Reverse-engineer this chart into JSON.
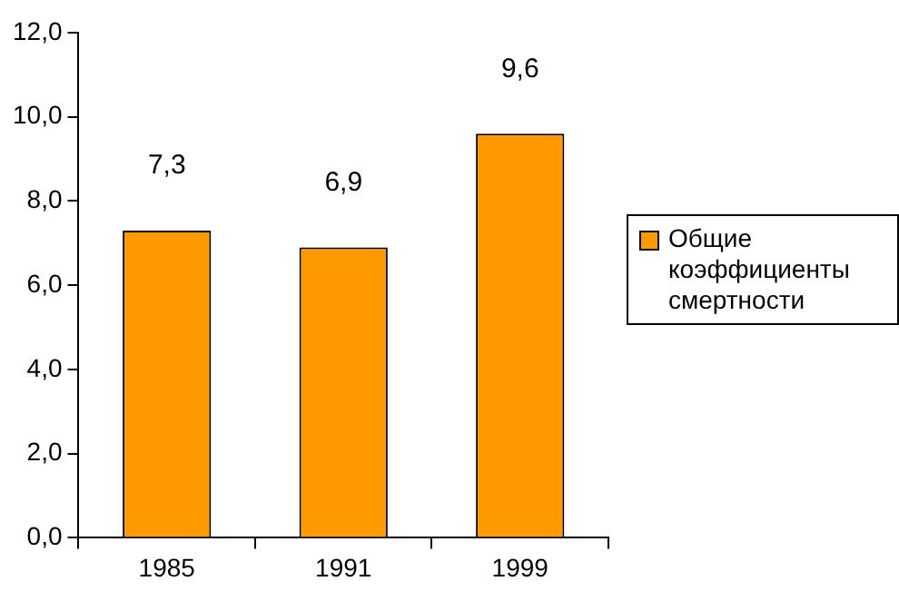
{
  "chart_data": {
    "type": "bar",
    "categories": [
      "1985",
      "1991",
      "1999"
    ],
    "series": [
      {
        "name": "Общие коэффициенты смертности",
        "color": "#ff9900",
        "values": [
          7.3,
          6.9,
          9.6
        ],
        "value_labels": [
          "7,3",
          "6,9",
          "9,6"
        ]
      }
    ],
    "ylim": [
      0,
      12
    ],
    "yticks": [
      {
        "value": 0,
        "label": "0,0"
      },
      {
        "value": 2,
        "label": "2,0"
      },
      {
        "value": 4,
        "label": "4,0"
      },
      {
        "value": 6,
        "label": "6,0"
      },
      {
        "value": 8,
        "label": "8,0"
      },
      {
        "value": 10,
        "label": "10,0"
      },
      {
        "value": 12,
        "label": "12,0"
      }
    ],
    "grid": false,
    "legend": "right"
  }
}
